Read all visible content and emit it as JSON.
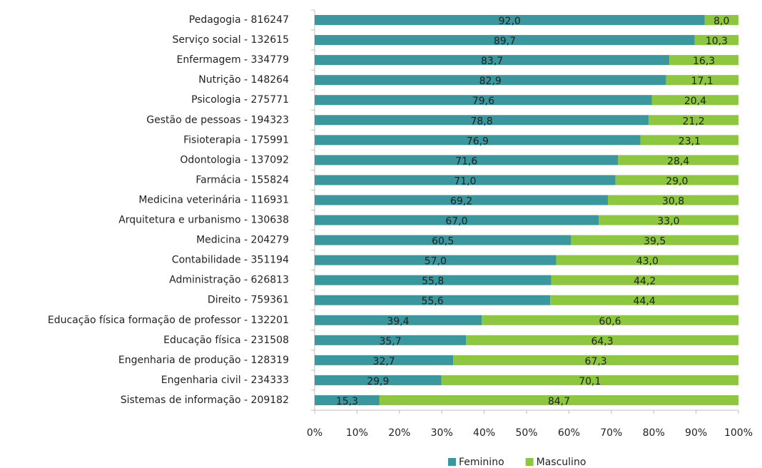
{
  "chart_data": {
    "type": "bar",
    "orientation": "horizontal",
    "stacked": true,
    "categories": [
      "Pedagogia - 816247",
      "Serviço social - 132615",
      "Enfermagem - 334779",
      "Nutrição - 148264",
      "Psicologia - 275771",
      "Gestão de pessoas - 194323",
      "Fisioterapia - 175991",
      "Odontologia - 137092",
      "Farmácia - 155824",
      "Medicina veterinária - 116931",
      "Arquitetura e urbanismo - 130638",
      "Medicina - 204279",
      "Contabilidade - 351194",
      "Administração - 626813",
      "Direito - 759361",
      "Educação física formação de professor - 132201",
      "Educação física - 231508",
      "Engenharia de produção - 128319",
      "Engenharia civil - 234333",
      "Sistemas de informação - 209182"
    ],
    "series": [
      {
        "name": "Feminino",
        "color": "#3a979e",
        "values": [
          92.0,
          89.7,
          83.7,
          82.9,
          79.6,
          78.8,
          76.9,
          71.6,
          71.0,
          69.2,
          67.0,
          60.5,
          57.0,
          55.8,
          55.6,
          39.4,
          35.7,
          32.7,
          29.9,
          15.3
        ],
        "value_labels": [
          "92,0",
          "89,7",
          "83,7",
          "82,9",
          "79,6",
          "78,8",
          "76,9",
          "71,6",
          "71,0",
          "69,2",
          "67,0",
          "60,5",
          "57,0",
          "55,8",
          "55,6",
          "39,4",
          "35,7",
          "32,7",
          "29,9",
          "15,3"
        ]
      },
      {
        "name": "Masculino",
        "color": "#8dc63f",
        "values": [
          8.0,
          10.3,
          16.3,
          17.1,
          20.4,
          21.2,
          23.1,
          28.4,
          29.0,
          30.8,
          33.0,
          39.5,
          43.0,
          44.2,
          44.4,
          60.6,
          64.3,
          67.3,
          70.1,
          84.7
        ],
        "value_labels": [
          "8,0",
          "10,3",
          "16,3",
          "17,1",
          "20,4",
          "21,2",
          "23,1",
          "28,4",
          "29,0",
          "30,8",
          "33,0",
          "39,5",
          "43,0",
          "44,2",
          "44,4",
          "60,6",
          "64,3",
          "67,3",
          "70,1",
          "84,7"
        ]
      }
    ],
    "xlim": [
      0,
      100
    ],
    "xticks": [
      {
        "value": 0,
        "label": "0%"
      },
      {
        "value": 10,
        "label": "10%"
      },
      {
        "value": 20,
        "label": "20%"
      },
      {
        "value": 30,
        "label": "30%"
      },
      {
        "value": 40,
        "label": "40%"
      },
      {
        "value": 50,
        "label": "50%"
      },
      {
        "value": 60,
        "label": "60%"
      },
      {
        "value": 70,
        "label": "70%"
      },
      {
        "value": 80,
        "label": "80%"
      },
      {
        "value": 90,
        "label": "90%"
      },
      {
        "value": 100,
        "label": "100%"
      }
    ],
    "legend": "bottom"
  }
}
